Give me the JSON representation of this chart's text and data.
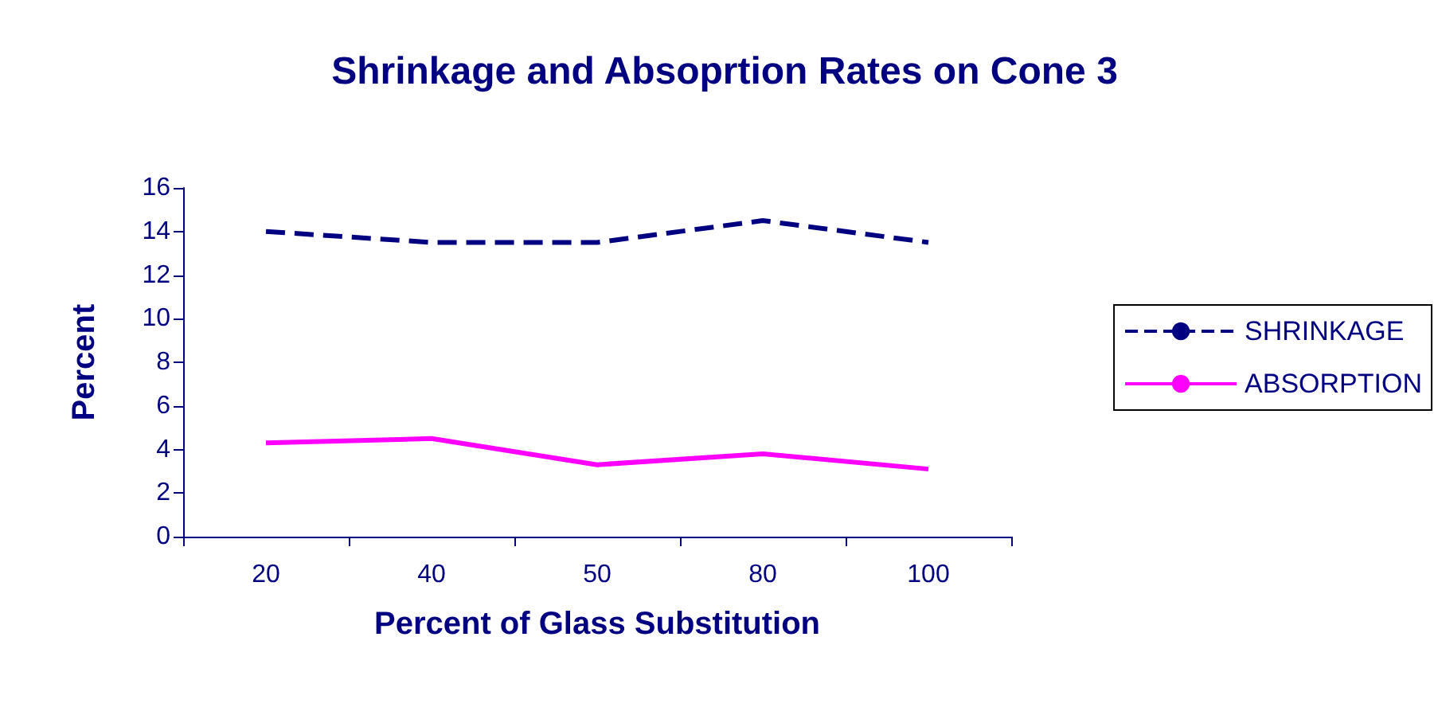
{
  "chart_data": {
    "type": "line",
    "title": "Shrinkage and Absoprtion Rates on Cone 3",
    "xlabel": "Percent of Glass Substitution",
    "ylabel": "Percent",
    "categories": [
      "20",
      "40",
      "50",
      "80",
      "100"
    ],
    "series": [
      {
        "name": "SHRINKAGE",
        "color": "#000080",
        "values": [
          14,
          13.5,
          13.5,
          14.5,
          13.5
        ],
        "line_style": "dashed"
      },
      {
        "name": "ABSORPTION",
        "color": "#ff00ff",
        "values": [
          4.3,
          4.5,
          3.3,
          3.8,
          3.1
        ],
        "line_style": "solid"
      }
    ],
    "ylim": [
      0,
      16
    ],
    "yticks": [
      0,
      2,
      4,
      6,
      8,
      10,
      12,
      14,
      16
    ],
    "grid": false,
    "legend": "right",
    "marker": "none"
  }
}
